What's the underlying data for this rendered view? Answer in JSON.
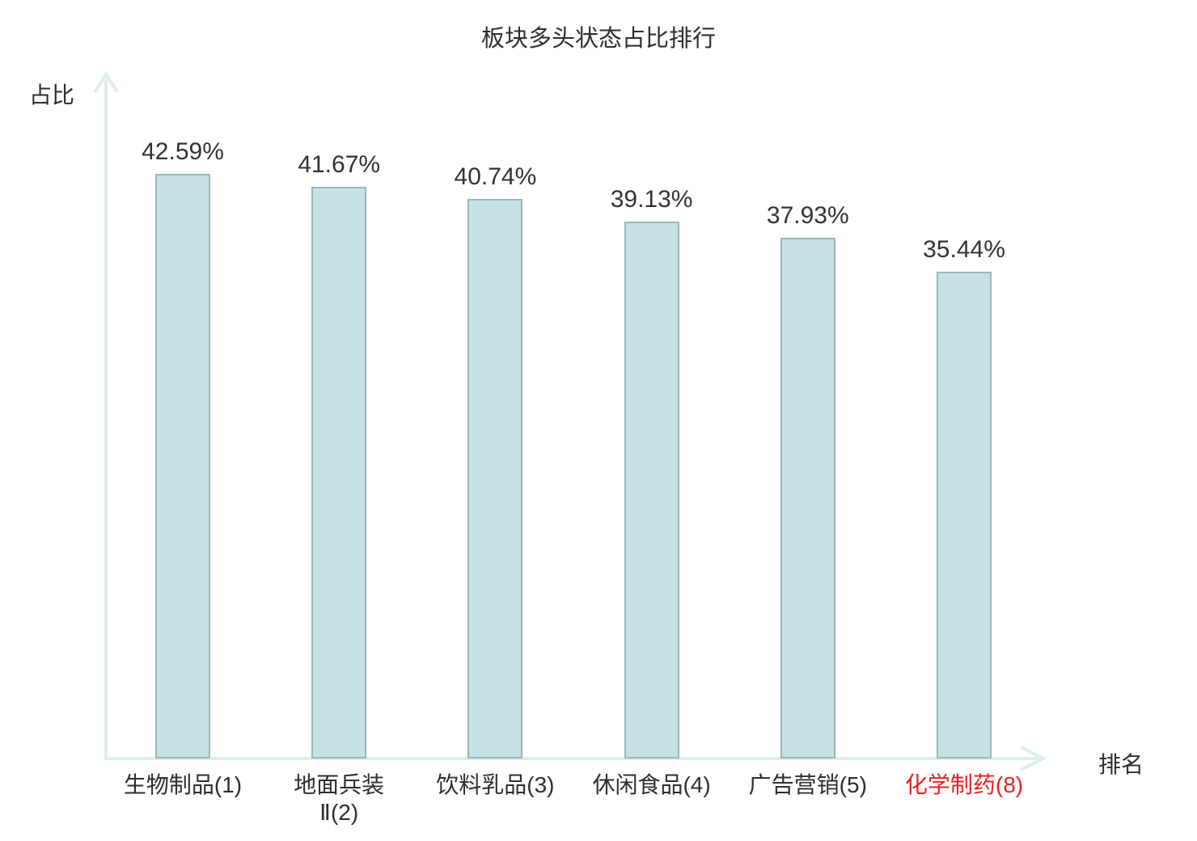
{
  "title": "板块多头状态占比排行",
  "y_axis_label": "占比",
  "x_axis_label": "排名",
  "colors": {
    "bar_fill": "#c5e3e6",
    "bar_border": "#9db5b8",
    "axis_line": "#dcefe9",
    "text": "#2e2e2e",
    "value_text": "#333333",
    "highlight_text": "#e62222"
  },
  "chart_data": {
    "type": "bar",
    "title": "板块多头状态占比排行",
    "xlabel": "排名",
    "ylabel": "占比",
    "categories": [
      "生物制品(1)",
      "地面兵装\nⅡ(2)",
      "饮料乳品(3)",
      "休闲食品(4)",
      "广告营销(5)",
      "化学制药(8)"
    ],
    "values": [
      42.59,
      41.67,
      40.74,
      39.13,
      37.93,
      35.44
    ],
    "value_labels": [
      "42.59%",
      "41.67%",
      "40.74%",
      "39.13%",
      "37.93%",
      "35.44%"
    ],
    "highlighted_category_index": 5,
    "highlighted_category_color": "#e62222",
    "ylim": [
      0,
      50
    ],
    "grid": false,
    "legend": false,
    "axis_ticks": false
  }
}
